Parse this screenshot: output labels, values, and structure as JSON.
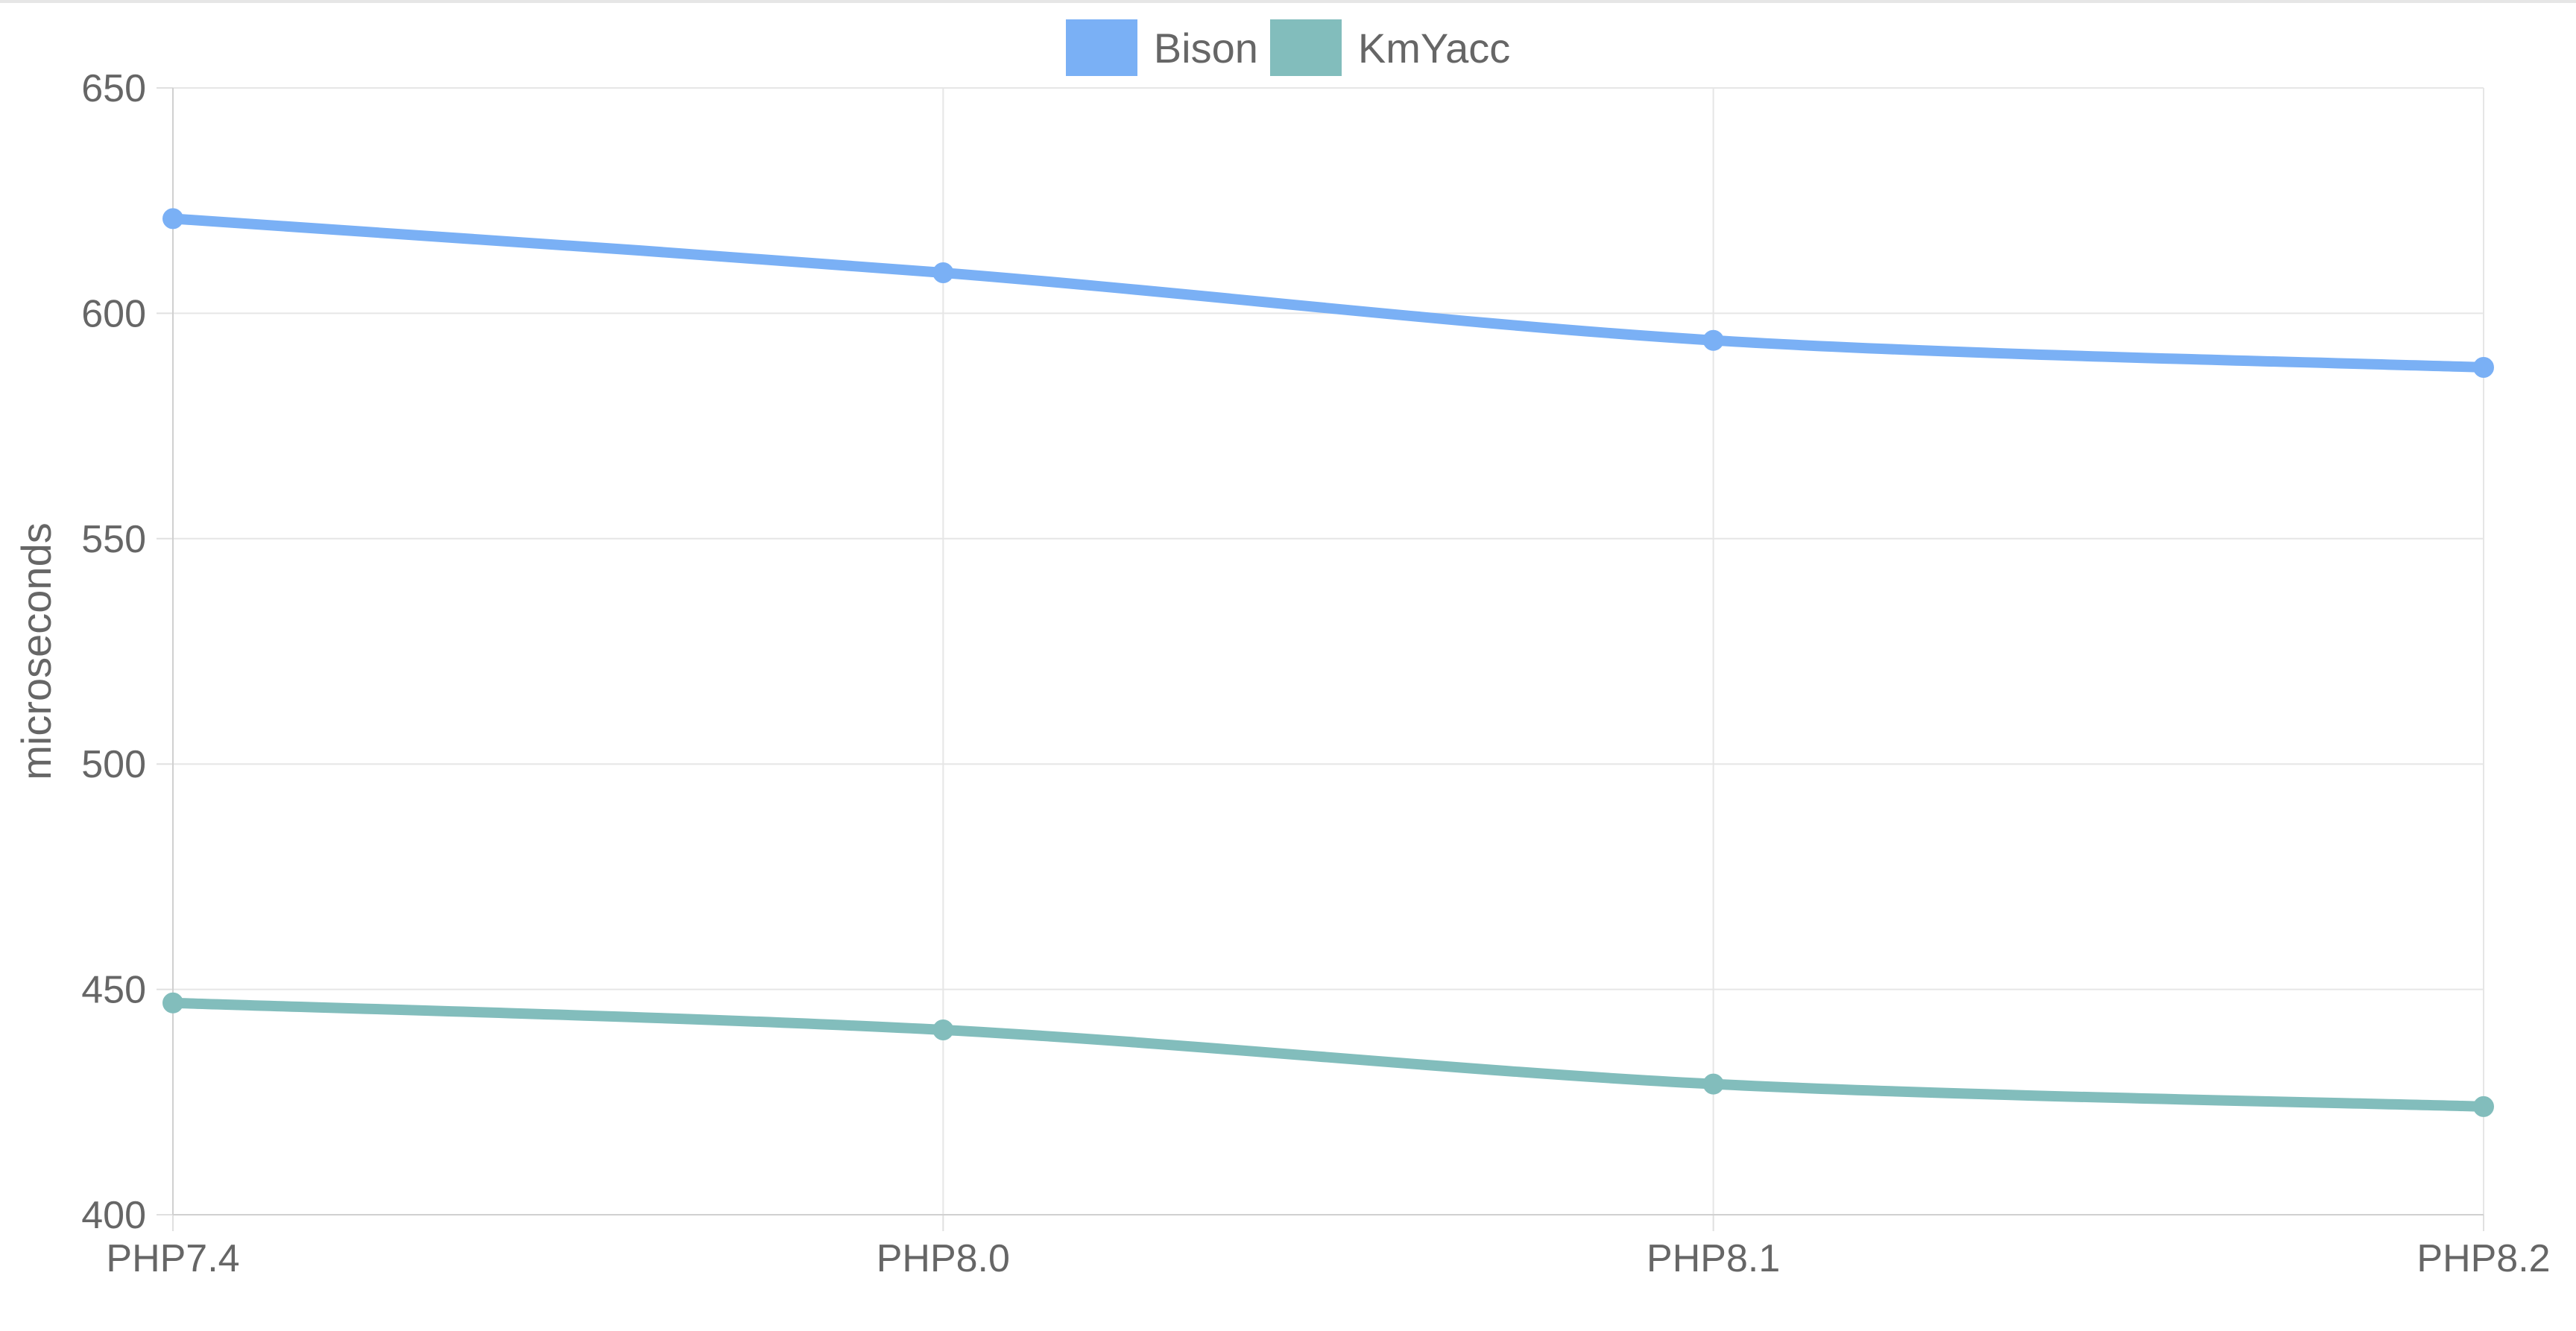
{
  "chart_data": {
    "type": "line",
    "categories": [
      "PHP7.4",
      "PHP8.0",
      "PHP8.1",
      "PHP8.2"
    ],
    "series": [
      {
        "name": "Bison",
        "values": [
          621,
          609,
          594,
          588
        ],
        "color": "#7ab0f5"
      },
      {
        "name": "KmYacc",
        "values": [
          447,
          441,
          429,
          424
        ],
        "color": "#82bdbc"
      }
    ],
    "title": "",
    "xlabel": "",
    "ylabel": "microseconds",
    "ylim": [
      400,
      650
    ],
    "yticks": [
      400,
      450,
      500,
      550,
      600,
      650
    ],
    "grid": true,
    "legend_position": "top-center"
  }
}
